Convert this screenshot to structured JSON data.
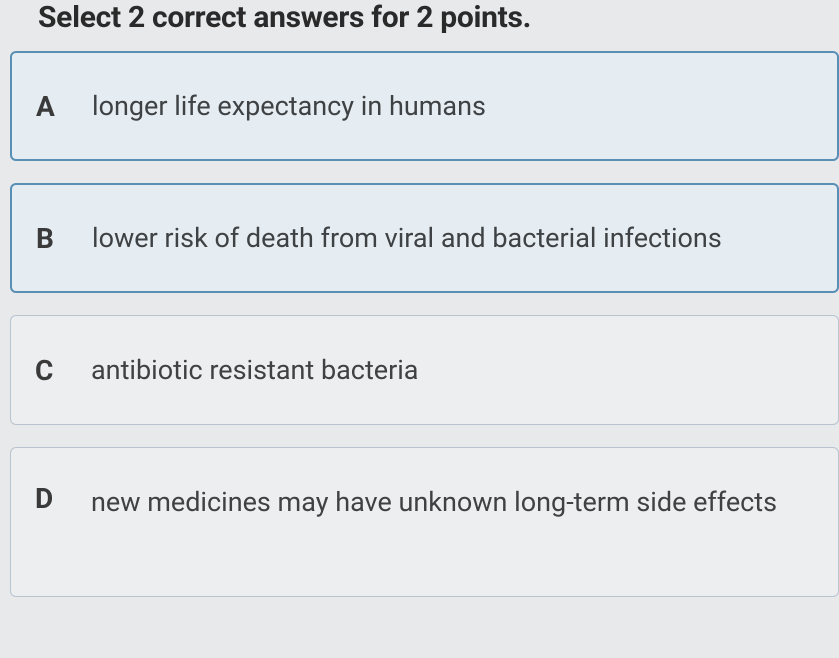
{
  "instruction": "Select 2 correct answers for 2 points.",
  "options": [
    {
      "letter": "A",
      "text": "longer life expectancy in humans",
      "selected": true
    },
    {
      "letter": "B",
      "text": "lower risk of death from viral and bacterial infections",
      "selected": true
    },
    {
      "letter": "C",
      "text": "antibiotic resistant bacteria",
      "selected": false
    },
    {
      "letter": "D",
      "text": "new medicines may have unknown long-term side effects",
      "selected": false
    }
  ],
  "colors": {
    "background": "#e8e9ea",
    "option_bg": "#eceeef",
    "option_selected_bg": "#e6edf2",
    "border": "#b8c4d0",
    "border_selected": "#5a8fb5",
    "text_primary": "#2a2a2a",
    "text_option": "#3f4244"
  },
  "typography": {
    "instruction_fontsize": 30,
    "instruction_weight": 700,
    "letter_fontsize": 28,
    "letter_weight": 700,
    "option_fontsize": 27,
    "option_weight": 400
  }
}
